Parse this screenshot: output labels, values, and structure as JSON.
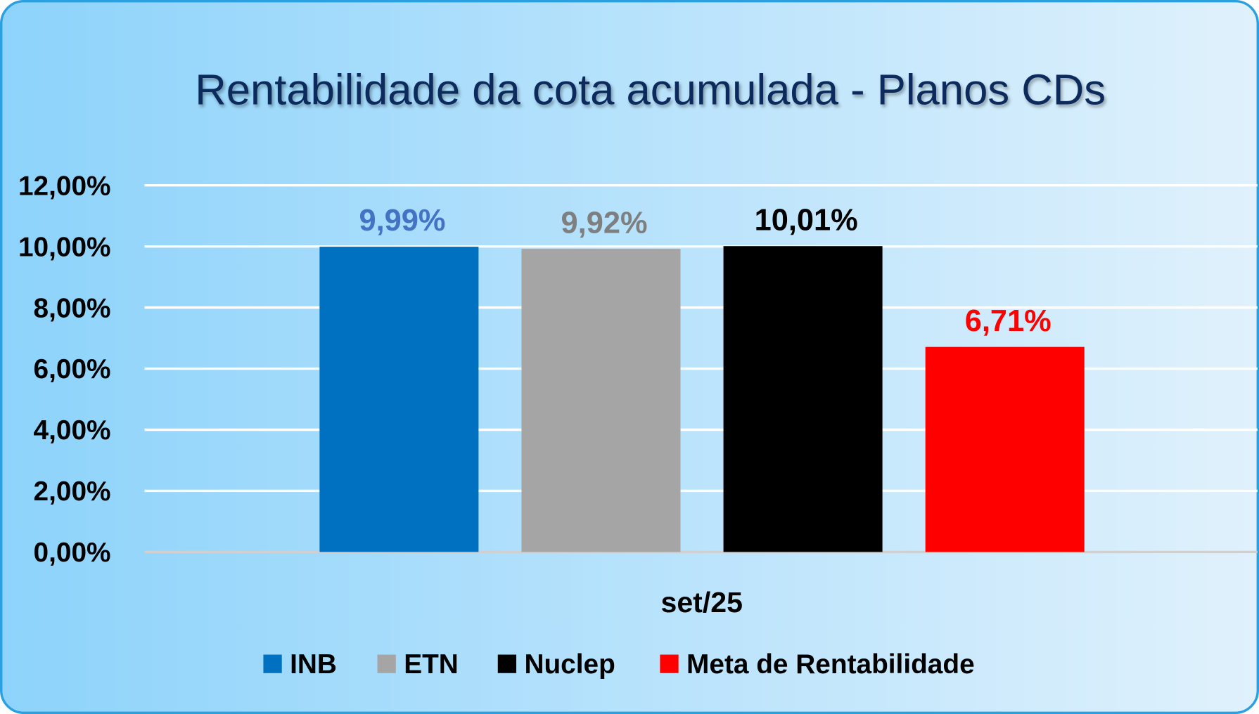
{
  "chart_data": {
    "type": "bar",
    "title": "Rentabilidade da cota acumulada - Planos CDs",
    "xlabel": "",
    "ylabel": "",
    "categories": [
      "set/25"
    ],
    "series": [
      {
        "name": "INB",
        "values": [
          9.99
        ],
        "label": "9,99%",
        "color": "#0070c0",
        "label_color": "#4472c4"
      },
      {
        "name": "ETN",
        "values": [
          9.92
        ],
        "label": "9,92%",
        "color": "#a5a5a5",
        "label_color": "#7f7f7f"
      },
      {
        "name": "Nuclep",
        "values": [
          10.01
        ],
        "label": "10,01%",
        "color": "#000000",
        "label_color": "#000000"
      },
      {
        "name": "Meta de Rentabilidade",
        "values": [
          6.71
        ],
        "label": "6,71%",
        "color": "#ff0000",
        "label_color": "#ff0000"
      }
    ],
    "ylim": [
      0,
      12
    ],
    "yticks": [
      0,
      2,
      4,
      6,
      8,
      10,
      12
    ],
    "ytick_labels": [
      "0,00%",
      "2,00%",
      "4,00%",
      "6,00%",
      "8,00%",
      "10,00%",
      "12,00%"
    ],
    "grid": true,
    "legend_position": "bottom"
  },
  "colors": {
    "title": "#0d2a5c",
    "border": "#2aa0e0",
    "bg_left": "#8dd3fb",
    "bg_right": "#e0f1fc"
  }
}
